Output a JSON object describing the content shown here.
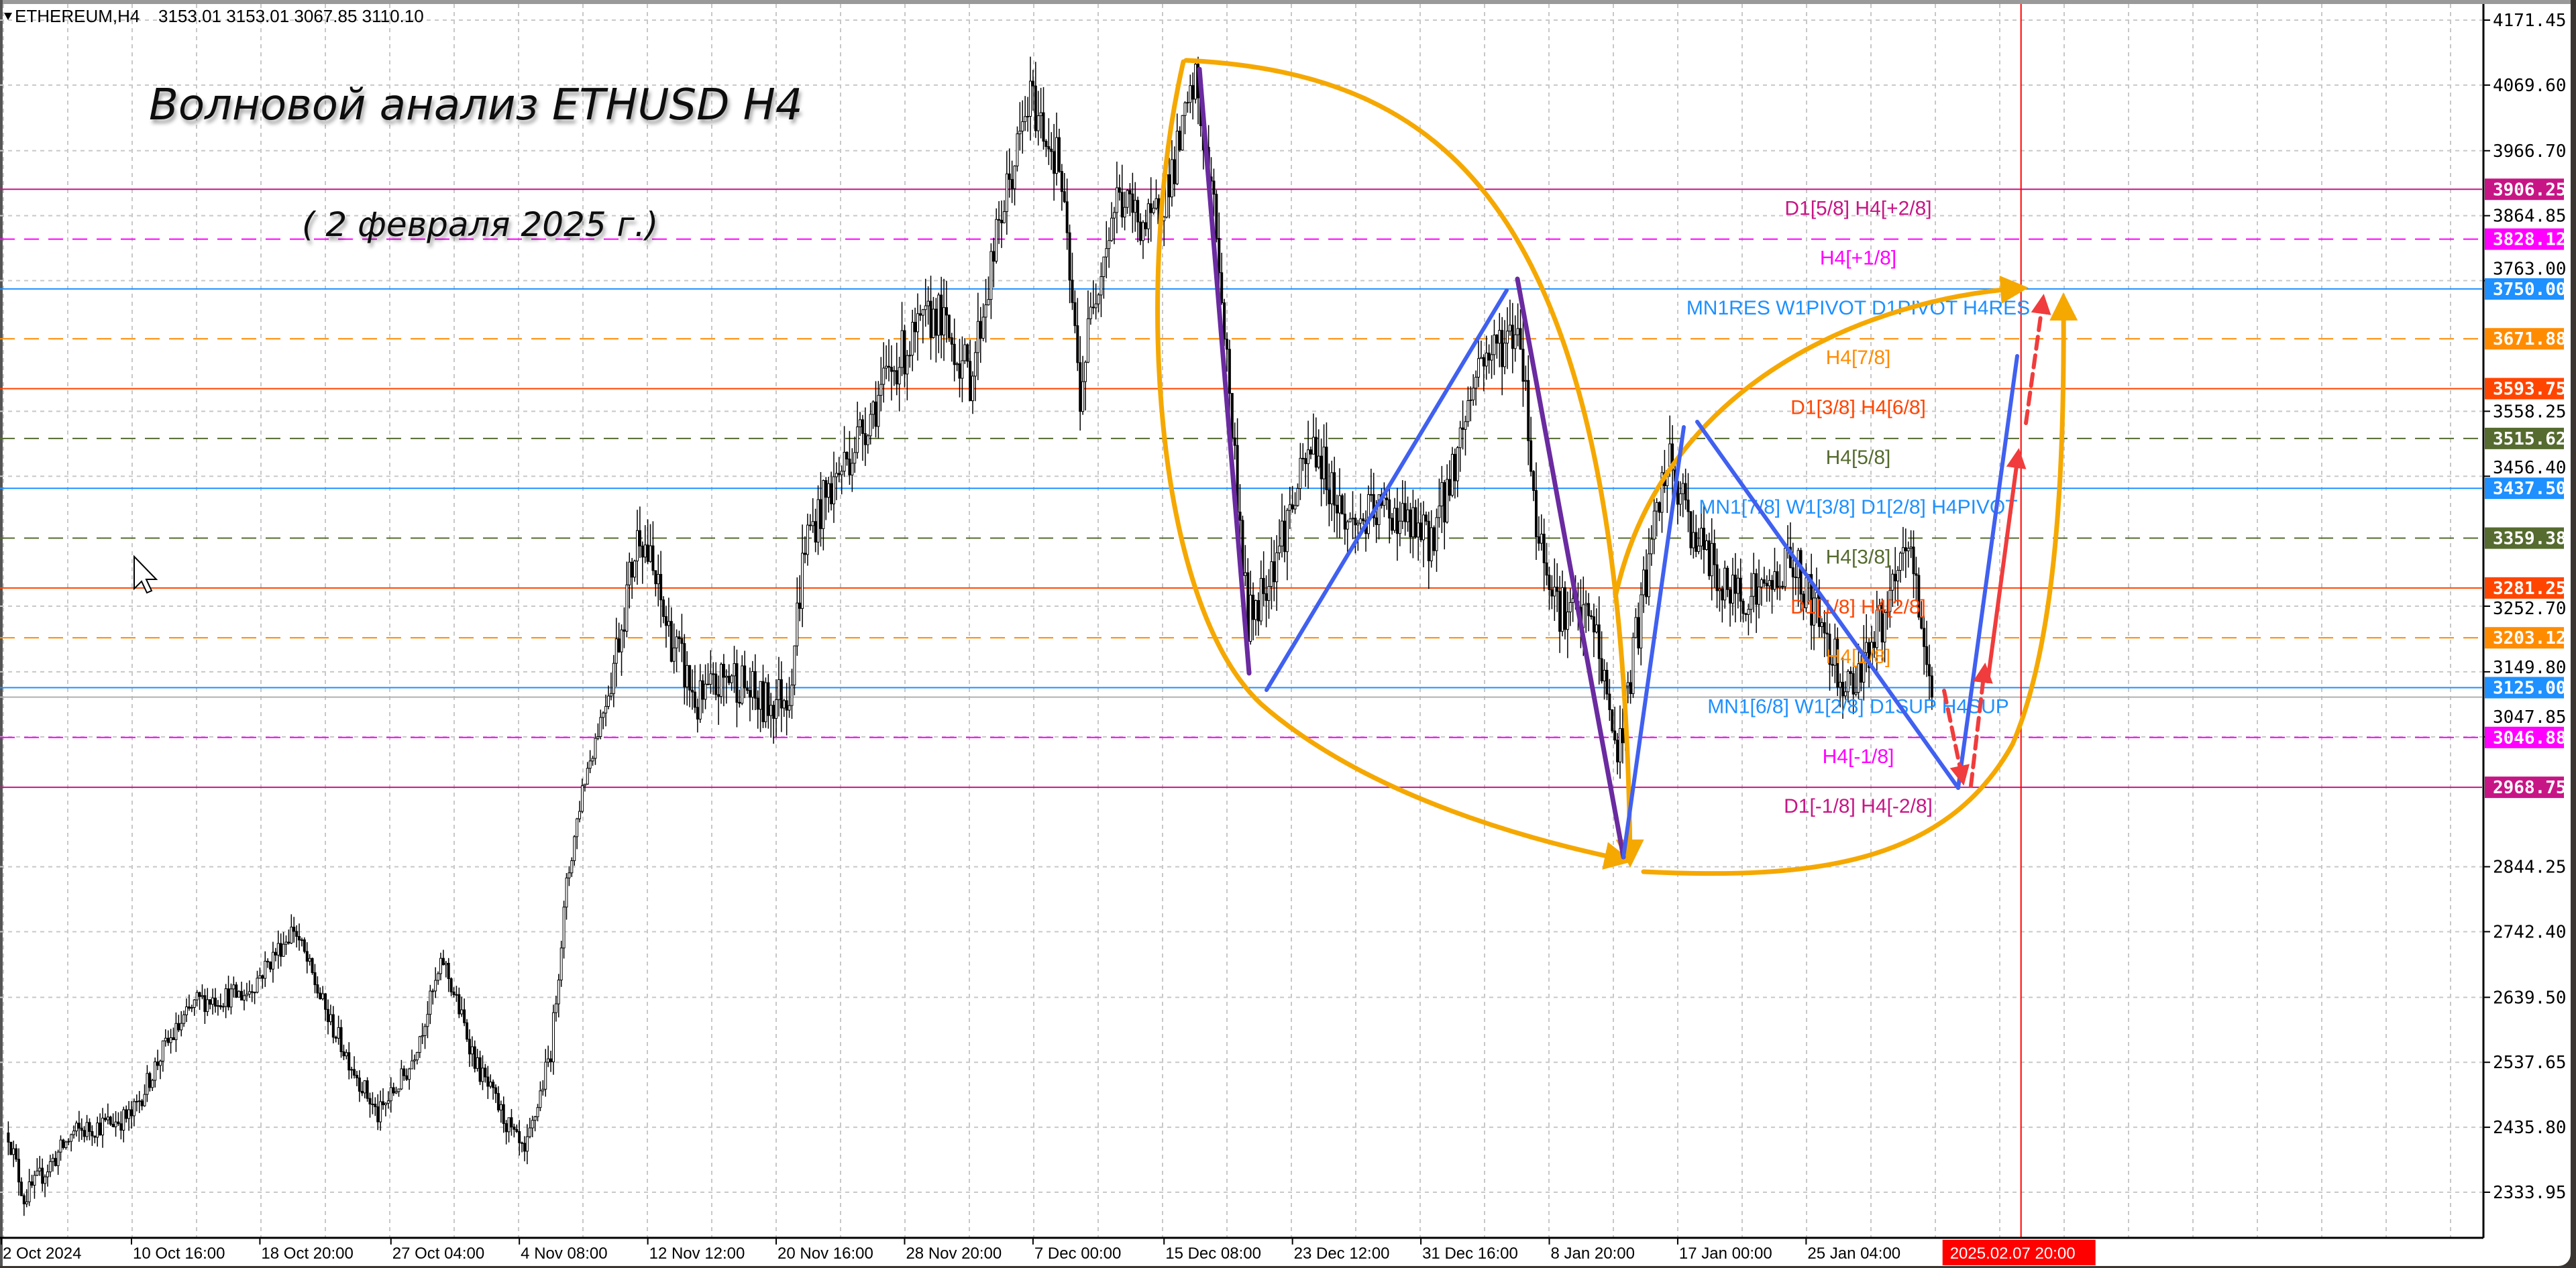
{
  "header": {
    "symbol": "ETHEREUM,H4",
    "ohlc": "3153.01 3153.01 3067.85 3110.10"
  },
  "annotation": {
    "title": "Волновой анализ ETHUSD H4",
    "subtitle": "( 2 февраля 2025 г.)"
  },
  "icons": {
    "menu": "triangle-down-icon",
    "cursor": "mouse-pointer-icon"
  },
  "colors": {
    "wave_orange": "#f5a800",
    "wave_purple": "#6a2aa0",
    "wave_blue": "#4060f0",
    "forecast_red": "#f03c3c",
    "time_marker": "#ff0000"
  },
  "chart_data": {
    "type": "candlestick",
    "symbol": "ETHEREUM",
    "timeframe": "H4",
    "ylim": [
      2290,
      4180
    ],
    "grid": true,
    "price_ticks": [
      "4171.45",
      "4069.60",
      "3966.70",
      "3864.85",
      "3763.00",
      "3558.25",
      "3456.40",
      "3252.70",
      "3149.80",
      "3047.85",
      "2844.25",
      "2742.40",
      "2639.50",
      "2537.65",
      "2435.80",
      "2333.95"
    ],
    "time_ticks": [
      {
        "label": "2 Oct 2024",
        "t": "2024-10-02T00:00Z"
      },
      {
        "label": "10 Oct 16:00",
        "t": "2024-10-10T16:00Z"
      },
      {
        "label": "18 Oct 20:00",
        "t": "2024-10-18T20:00Z"
      },
      {
        "label": "27 Oct 04:00",
        "t": "2024-10-27T04:00Z"
      },
      {
        "label": "4 Nov 08:00",
        "t": "2024-11-04T08:00Z"
      },
      {
        "label": "12 Nov 12:00",
        "t": "2024-11-12T12:00Z"
      },
      {
        "label": "20 Nov 16:00",
        "t": "2024-11-20T16:00Z"
      },
      {
        "label": "28 Nov 20:00",
        "t": "2024-11-28T20:00Z"
      },
      {
        "label": "7 Dec 00:00",
        "t": "2024-12-07T00:00Z"
      },
      {
        "label": "15 Dec 08:00",
        "t": "2024-12-15T08:00Z"
      },
      {
        "label": "23 Dec 12:00",
        "t": "2024-12-23T12:00Z"
      },
      {
        "label": "31 Dec 16:00",
        "t": "2024-12-31T16:00Z"
      },
      {
        "label": "8 Jan 20:00",
        "t": "2025-01-08T20:00Z"
      },
      {
        "label": "17 Jan 00:00",
        "t": "2025-01-17T00:00Z"
      },
      {
        "label": "25 Jan 04:00",
        "t": "2025-01-25T04:00Z"
      }
    ],
    "time_marker": {
      "label": "2025.02.07 20:00",
      "t": "2025-02-07T20:00Z"
    },
    "last_price": 3110.1,
    "price_path": [
      [
        "2024-10-02T20:00Z",
        2427
      ],
      [
        "2024-10-03T20:00Z",
        2324
      ],
      [
        "2024-10-07T00:00Z",
        2427
      ],
      [
        "2024-10-10T16:00Z",
        2453
      ],
      [
        "2024-10-12T16:00Z",
        2556
      ],
      [
        "2024-10-14T20:00Z",
        2633
      ],
      [
        "2024-10-18T00:00Z",
        2646
      ],
      [
        "2024-10-21T00:00Z",
        2749
      ],
      [
        "2024-10-23T04:00Z",
        2607
      ],
      [
        "2024-10-26T08:00Z",
        2453
      ],
      [
        "2024-10-28T08:00Z",
        2530
      ],
      [
        "2024-10-30T12:00Z",
        2697
      ],
      [
        "2024-11-01T16:00Z",
        2530
      ],
      [
        "2024-11-04T16:00Z",
        2388
      ],
      [
        "2024-11-06T08:00Z",
        2556
      ],
      [
        "2024-11-07T08:00Z",
        2813
      ],
      [
        "2024-11-08T08:00Z",
        2968
      ],
      [
        "2024-11-10T00:00Z",
        3122
      ],
      [
        "2024-11-12T00:00Z",
        3379
      ],
      [
        "2024-11-13T16:00Z",
        3225
      ],
      [
        "2024-11-15T16:00Z",
        3096
      ],
      [
        "2024-11-17T20:00Z",
        3148
      ],
      [
        "2024-11-19T20:00Z",
        3096
      ],
      [
        "2024-11-21T12:00Z",
        3122
      ],
      [
        "2024-11-22T12:00Z",
        3354
      ],
      [
        "2024-11-24T00:00Z",
        3431
      ],
      [
        "2024-11-25T16:00Z",
        3508
      ],
      [
        "2024-11-28T08:00Z",
        3637
      ],
      [
        "2024-11-30T20:00Z",
        3714
      ],
      [
        "2024-12-03T00:00Z",
        3611
      ],
      [
        "2024-12-05T00:00Z",
        3868
      ],
      [
        "2024-12-06T20:00Z",
        4049
      ],
      [
        "2024-12-08T16:00Z",
        3946
      ],
      [
        "2024-12-10T00:00Z",
        3585
      ],
      [
        "2024-12-10T20:00Z",
        3740
      ],
      [
        "2024-12-12T08:00Z",
        3894
      ],
      [
        "2024-12-14T12:00Z",
        3843
      ],
      [
        "2024-12-16T00:00Z",
        3946
      ],
      [
        "2024-12-17T08:00Z",
        4074
      ],
      [
        "2024-12-18T16:00Z",
        3843
      ],
      [
        "2024-12-20T16:00Z",
        3225
      ],
      [
        "2024-12-22T08:00Z",
        3328
      ],
      [
        "2024-12-24T20:00Z",
        3508
      ],
      [
        "2024-12-27T00:00Z",
        3379
      ],
      [
        "2024-12-29T16:00Z",
        3405
      ],
      [
        "2025-01-01T04:00Z",
        3354
      ],
      [
        "2025-01-02T08:00Z",
        3431
      ],
      [
        "2025-01-04T08:00Z",
        3637
      ],
      [
        "2025-01-07T00:00Z",
        3688
      ],
      [
        "2025-01-08T00:00Z",
        3379
      ],
      [
        "2025-01-09T12:00Z",
        3251
      ],
      [
        "2025-01-11T16:00Z",
        3225
      ],
      [
        "2025-01-13T04:00Z",
        3019
      ],
      [
        "2025-01-13T20:00Z",
        3122
      ],
      [
        "2025-01-14T20:00Z",
        3276
      ],
      [
        "2025-01-16T08:00Z",
        3482
      ],
      [
        "2025-01-17T20:00Z",
        3379
      ],
      [
        "2025-01-20T00:00Z",
        3276
      ],
      [
        "2025-01-22T16:00Z",
        3276
      ],
      [
        "2025-01-24T04:00Z",
        3328
      ],
      [
        "2025-01-25T16:00Z",
        3251
      ],
      [
        "2025-01-27T20:00Z",
        3122
      ],
      [
        "2025-01-28T20:00Z",
        3174
      ],
      [
        "2025-01-30T12:00Z",
        3251
      ],
      [
        "2025-01-31T16:00Z",
        3354
      ],
      [
        "2025-02-01T12:00Z",
        3225
      ],
      [
        "2025-02-02T04:00Z",
        3110
      ]
    ],
    "levels": [
      {
        "price": "3906.25",
        "label": "D1[5/8] H4[+2/8]",
        "color": "#c71585",
        "style": "solid"
      },
      {
        "price": "3828.12",
        "label": "H4[+1/8]",
        "color": "#ff00ff",
        "style": "dashed"
      },
      {
        "price": "3750.00",
        "label": "MN1RES W1PIVOT D1PIVOT H4RES",
        "color": "#1e90ff",
        "style": "solid"
      },
      {
        "price": "3671.88",
        "label": "H4[7/8]",
        "color": "#ff8c00",
        "style": "dashed"
      },
      {
        "price": "3593.75",
        "label": "D1[3/8] H4[6/8]",
        "color": "#ff4500",
        "style": "solid"
      },
      {
        "price": "3515.62",
        "label": "H4[5/8]",
        "color": "#556b2f",
        "style": "dashed"
      },
      {
        "price": "3437.50",
        "label": "MN1[7/8] W1[3/8] D1[2/8] H4PIVOT",
        "color": "#1e90ff",
        "style": "solid"
      },
      {
        "price": "3359.38",
        "label": "H4[3/8]",
        "color": "#556b2f",
        "style": "dashed"
      },
      {
        "price": "3281.25",
        "label": "D1[1/8] H4[2/8]",
        "color": "#ff4500",
        "style": "solid"
      },
      {
        "price": "3203.12",
        "label": "H4[1/8]",
        "color": "#ff8c00",
        "style": "dashed"
      },
      {
        "price": "3125.00",
        "label": "MN1[6/8] W1[2/8] D1SUP H4SUP",
        "color": "#1e90ff",
        "style": "solid"
      },
      {
        "price": "3046.88",
        "label": "H4[-1/8]",
        "color": "#ff00ff",
        "style": "dashed"
      },
      {
        "price": "2968.75",
        "label": "D1[-1/8] H4[-2/8]",
        "color": "#c71585",
        "style": "solid"
      }
    ]
  }
}
